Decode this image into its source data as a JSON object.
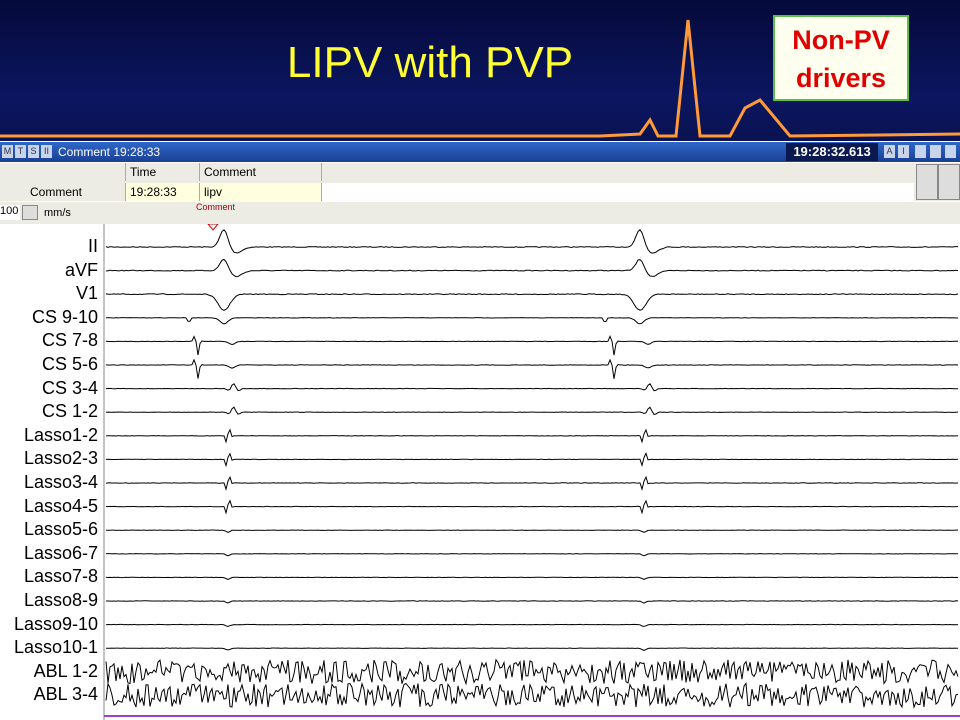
{
  "slide": {
    "title": "LIPV with PVP",
    "badge": [
      "Non-PV",
      "drivers"
    ]
  },
  "window": {
    "toolbar_buttons": [
      "M",
      "T",
      "S",
      "II"
    ],
    "status": "Comment 19:28:33",
    "clock": "19:28:32.613",
    "right_buttons": [
      "A",
      "I"
    ],
    "table": {
      "headers": [
        "Time",
        "Comment"
      ],
      "row": [
        "Comment",
        "19:28:33",
        "lipv"
      ]
    },
    "speed": "100",
    "speed_unit": "mm/s",
    "event_marker": "Comment",
    "channels": [
      "II",
      "aVF",
      "V1",
      "CS 9-10",
      "CS 7-8",
      "CS 5-6",
      "CS 3-4",
      "CS 1-2",
      "Lasso1-2",
      "Lasso2-3",
      "Lasso3-4",
      "Lasso4-5",
      "Lasso5-6",
      "Lasso6-7",
      "Lasso7-8",
      "Lasso8-9",
      "Lasso9-10",
      "Lasso10-1",
      "ABL 1-2",
      "ABL 3-4"
    ]
  }
}
